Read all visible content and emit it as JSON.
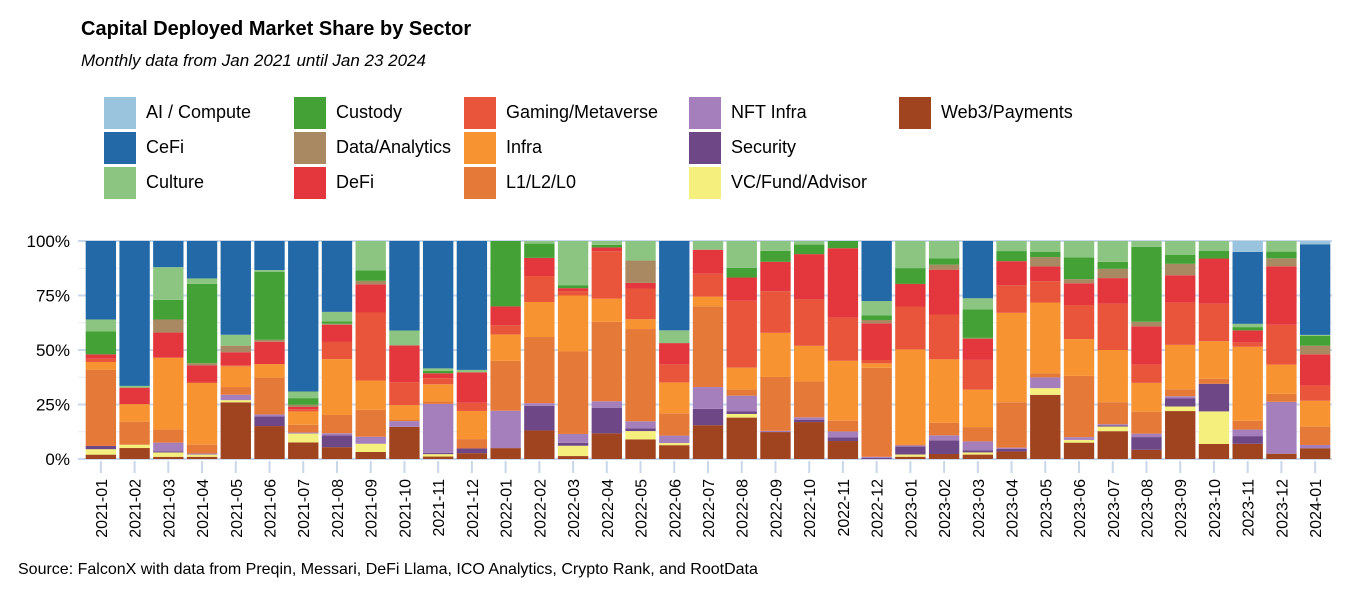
{
  "title": "Capital Deployed Market Share by Sector",
  "subtitle": "Monthly data from Jan 2021 until Jan 23 2024",
  "source": "Source: FalconX with data from Preqin, Messari, DeFi Llama, ICO Analytics, Crypto Rank, and RootData",
  "chart_data": {
    "type": "bar",
    "stacked": true,
    "normalized": true,
    "title": "Capital Deployed Market Share by Sector",
    "subtitle": "Monthly data from Jan 2021 until Jan 23 2024",
    "xlabel": "",
    "ylabel": "",
    "ylim": [
      0,
      100
    ],
    "yticks": [
      "0%",
      "25%",
      "50%",
      "75%",
      "100%"
    ],
    "ytick_values": [
      0,
      25,
      50,
      75,
      100
    ],
    "grid": true,
    "legend_position": "top",
    "categories": [
      "2021-01",
      "2021-02",
      "2021-03",
      "2021-04",
      "2021-05",
      "2021-06",
      "2021-07",
      "2021-08",
      "2021-09",
      "2021-10",
      "2021-11",
      "2021-12",
      "2022-01",
      "2022-02",
      "2022-03",
      "2022-04",
      "2022-05",
      "2022-06",
      "2022-07",
      "2022-08",
      "2022-09",
      "2022-10",
      "2022-11",
      "2022-12",
      "2023-01",
      "2023-02",
      "2023-03",
      "2023-04",
      "2023-05",
      "2023-06",
      "2023-07",
      "2023-08",
      "2023-09",
      "2023-10",
      "2023-11",
      "2023-12",
      "2024-01"
    ],
    "stack_order": [
      "Web3/Payments",
      "VC/Fund/Advisor",
      "Security",
      "NFT Infra",
      "L1/L2/L0",
      "Infra",
      "Gaming/Metaverse",
      "DeFi",
      "Data/Analytics",
      "Custody",
      "Culture",
      "CeFi",
      "AI / Compute"
    ],
    "series": [
      {
        "name": "AI / Compute",
        "color": "#9ac4de",
        "values": [
          0,
          0,
          0,
          0,
          0,
          0,
          0,
          0,
          0,
          0,
          0,
          0,
          0,
          0,
          0,
          0,
          0,
          0,
          0,
          0,
          0,
          0,
          0,
          0,
          0,
          0,
          0,
          0,
          0,
          0,
          0,
          0,
          0,
          0,
          5,
          0,
          1.5
        ]
      },
      {
        "name": "CeFi",
        "color": "#2369a8",
        "values": [
          36,
          66,
          12,
          17,
          43,
          15,
          68,
          33,
          0,
          39,
          52,
          55,
          0,
          0,
          0,
          0,
          0,
          42,
          0,
          0,
          0,
          0,
          0,
          27,
          0,
          0,
          26,
          0,
          0,
          0,
          0,
          0,
          0,
          0,
          33,
          0,
          42
        ]
      },
      {
        "name": "Culture",
        "color": "#8cc581",
        "values": [
          5.5,
          0.8,
          15,
          2.5,
          5,
          1,
          3,
          4.5,
          12.5,
          6.5,
          1,
          1,
          0,
          1,
          15,
          1.5,
          7,
          6,
          4,
          11,
          4,
          1.5,
          0,
          6.5,
          12,
          7,
          5,
          4,
          4,
          6,
          9,
          2.5,
          6,
          4,
          1.5,
          4,
          0.5
        ]
      },
      {
        "name": "Custody",
        "color": "#43a135",
        "values": [
          10.5,
          0,
          9,
          36,
          0,
          35,
          3,
          1,
          4.5,
          0,
          1,
          0,
          21,
          5.5,
          1,
          1,
          0,
          0,
          0,
          4,
          4.5,
          4,
          3,
          2,
          7,
          2.5,
          13,
          4,
          2,
          8,
          3,
          32.5,
          4,
          3,
          1.5,
          2.5,
          4.5
        ]
      },
      {
        "name": "Data/Analytics",
        "color": "#a98962",
        "values": [
          0,
          0,
          6,
          1,
          3,
          1,
          1,
          0.5,
          1.5,
          0,
          0,
          0,
          0,
          0,
          0,
          0,
          8,
          0,
          0,
          0,
          0,
          0,
          0,
          1.5,
          0,
          2,
          0.5,
          0,
          3.5,
          1.5,
          4,
          2,
          5,
          0,
          0,
          3,
          4
        ]
      },
      {
        "name": "DeFi",
        "color": "#e3363d",
        "values": [
          2,
          7.5,
          11.5,
          7.5,
          6,
          11.5,
          1,
          8,
          12,
          16,
          2,
          13,
          6,
          7,
          1,
          1.5,
          2,
          10,
          11,
          9.5,
          12,
          19,
          29,
          16.5,
          10,
          18,
          9.5,
          9.5,
          5.5,
          8,
          11,
          16.5,
          12,
          18,
          5.5,
          22,
          14.5
        ]
      },
      {
        "name": "Gaming/Metaverse",
        "color": "#e8553a",
        "values": [
          1.5,
          0,
          0,
          0.5,
          0.5,
          0,
          1,
          8,
          29,
          10,
          2.5,
          3.5,
          3,
          10,
          1.5,
          18.5,
          11,
          8.5,
          10.5,
          27.5,
          17,
          19.5,
          18,
          1.5,
          19,
          18,
          13.5,
          11,
          8,
          12.5,
          20,
          8,
          18.5,
          15,
          2,
          15,
          7
        ]
      },
      {
        "name": "Infra",
        "color": "#f79431",
        "values": [
          3.5,
          8,
          33,
          28,
          9.5,
          7,
          6,
          26,
          12.5,
          6.5,
          7,
          12,
          8.5,
          13.5,
          19,
          9,
          3.5,
          14.5,
          4.5,
          9,
          18,
          15,
          25,
          2,
          42,
          25.5,
          17,
          35.5,
          26.5,
          13.5,
          22.5,
          12.5,
          19.5,
          15,
          34,
          11,
          12
        ]
      },
      {
        "name": "L1/L2/L0",
        "color": "#e57a38",
        "values": [
          35,
          10.5,
          6,
          4,
          3.5,
          19,
          3.5,
          8.5,
          11.5,
          0.5,
          1,
          4,
          16,
          25.5,
          28,
          31,
          33,
          10.5,
          37,
          2.5,
          22,
          15,
          4.5,
          40,
          0.5,
          5,
          6.5,
          18,
          1.5,
          22.5,
          9.5,
          9.5,
          3,
          2,
          4,
          3,
          8.5
        ]
      },
      {
        "name": "NFT Infra",
        "color": "#a57fbc",
        "values": [
          0,
          0,
          4,
          0.5,
          2.5,
          1,
          0.5,
          1,
          3,
          2.5,
          20,
          0,
          12,
          1,
          3,
          2.5,
          2.5,
          3.5,
          10,
          6.5,
          0.5,
          1,
          2.5,
          0.5,
          0.5,
          2,
          4,
          0.5,
          4,
          1,
          0.5,
          1.5,
          1,
          0,
          3,
          19.5,
          1.5
        ]
      },
      {
        "name": "Security",
        "color": "#6e4787",
        "values": [
          1.5,
          0,
          0.5,
          0,
          0,
          5,
          0,
          5.5,
          0,
          0,
          0.5,
          2,
          0,
          9.5,
          1,
          10,
          1,
          0,
          7.5,
          1,
          0,
          1,
          1.5,
          0.5,
          3.5,
          5.5,
          1,
          1,
          0,
          0,
          0.5,
          5.5,
          3.5,
          11,
          3.5,
          0,
          0
        ]
      },
      {
        "name": "VC/Fund/Advisor",
        "color": "#f5ef7e",
        "values": [
          2.5,
          1.5,
          2,
          1,
          1,
          0,
          4,
          0,
          3.5,
          0,
          1,
          0,
          0,
          0,
          3.5,
          0,
          3,
          1,
          0,
          1.5,
          0,
          0,
          0,
          0,
          1,
          0,
          1,
          0,
          2.5,
          1,
          2,
          0,
          2,
          13,
          0,
          0,
          0
        ]
      },
      {
        "name": "Web3/Payments",
        "color": "#a0431f",
        "values": [
          2,
          5,
          1,
          1,
          26,
          17,
          7.5,
          5.5,
          3,
          14,
          1,
          2.5,
          3.5,
          11,
          1,
          10,
          7,
          6.5,
          15.5,
          17,
          11,
          15.5,
          7.5,
          0,
          1,
          2,
          2,
          3,
          24,
          6,
          12,
          4,
          21,
          6,
          7,
          2,
          5
        ]
      }
    ]
  }
}
